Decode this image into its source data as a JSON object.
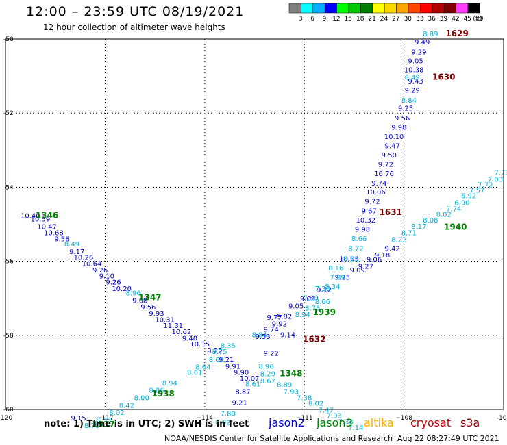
{
  "header": {
    "title": "12:00 – 23:59 UTC 08/19/2021",
    "subtitle": "12 hour collection of altimeter wave heights"
  },
  "colorbar": {
    "unit": "(ft)",
    "levels": [
      {
        "label": "3",
        "color": "#7f7f7f"
      },
      {
        "label": "6",
        "color": "#00ffff"
      },
      {
        "label": "9",
        "color": "#00b0ff"
      },
      {
        "label": "12",
        "color": "#0000ff"
      },
      {
        "label": "15",
        "color": "#00ff00"
      },
      {
        "label": "18",
        "color": "#00c800"
      },
      {
        "label": "21",
        "color": "#008000"
      },
      {
        "label": "24",
        "color": "#ffff00"
      },
      {
        "label": "27",
        "color": "#ffd700"
      },
      {
        "label": "30",
        "color": "#ffa500"
      },
      {
        "label": "33",
        "color": "#ff4500"
      },
      {
        "label": "36",
        "color": "#ff0000"
      },
      {
        "label": "39",
        "color": "#b00000"
      },
      {
        "label": "42",
        "color": "#800000"
      },
      {
        "label": "45",
        "color": "#ff40ff"
      },
      {
        "label": "70",
        "color": "#000000"
      }
    ]
  },
  "footer": {
    "note": "note:  1) Time is in UTC;  2) SWH is in feet",
    "credit": "NOAA/NESDIS Center for Satellite Applications and Research",
    "timestamp": "Aug 22 08:27:49 UTC 2021",
    "missions": [
      {
        "name": "jason2",
        "color": "#0000c8"
      },
      {
        "name": "jason3",
        "color": "#008000"
      },
      {
        "name": "altika",
        "color": "#ffa500"
      },
      {
        "name": "cryosat",
        "color": "#c00000"
      },
      {
        "name": "s3a",
        "color": "#800000"
      }
    ]
  },
  "chart_data": {
    "type": "scatter",
    "title": "12:00 – 23:59 UTC 08/19/2021",
    "subtitle": "12 hour collection of altimeter wave heights",
    "xlabel": "",
    "ylabel": "",
    "xlim": [
      -120,
      -105
    ],
    "ylim": [
      -60,
      -50
    ],
    "xticks": [
      {
        "v": -120,
        "label": "-120"
      },
      {
        "v": -117,
        "label": "−117"
      },
      {
        "v": -114,
        "label": "−114"
      },
      {
        "v": -111,
        "label": "−111"
      },
      {
        "v": -108,
        "label": "−108"
      },
      {
        "v": -105,
        "label": "-105"
      }
    ],
    "yticks": [
      {
        "v": -50,
        "label": "-50"
      },
      {
        "v": -52,
        "label": "-52"
      },
      {
        "v": -54,
        "label": "-54"
      },
      {
        "v": -56,
        "label": "-56"
      },
      {
        "v": -58,
        "label": "-58"
      },
      {
        "v": -60,
        "label": "-60"
      }
    ],
    "grid": true,
    "series": [
      {
        "color": "#0000c8",
        "points": [
          {
            "x": -119.25,
            "y": -54.83,
            "label": "10.40"
          },
          {
            "x": -118.95,
            "y": -54.93,
            "label": "10.59"
          },
          {
            "x": -118.75,
            "y": -55.13,
            "label": "10.47"
          },
          {
            "x": -118.55,
            "y": -55.3,
            "label": "10.68"
          },
          {
            "x": -118.3,
            "y": -55.46,
            "label": "9.58"
          },
          {
            "x": -117.85,
            "y": -55.8,
            "label": "9.17"
          },
          {
            "x": -117.65,
            "y": -55.96,
            "label": "10.26"
          },
          {
            "x": -117.4,
            "y": -56.13,
            "label": "10.64"
          },
          {
            "x": -117.15,
            "y": -56.3,
            "label": "9.26"
          },
          {
            "x": -116.95,
            "y": -56.46,
            "label": "9.10"
          },
          {
            "x": -116.75,
            "y": -56.63,
            "label": "9.26"
          },
          {
            "x": -116.5,
            "y": -56.8,
            "label": "10.20"
          },
          {
            "x": -115.95,
            "y": -57.13,
            "label": "9.08"
          },
          {
            "x": -115.7,
            "y": -57.3,
            "label": "9.56"
          },
          {
            "x": -115.45,
            "y": -57.47,
            "label": "9.93"
          },
          {
            "x": -115.2,
            "y": -57.64,
            "label": "10.31"
          },
          {
            "x": -114.95,
            "y": -57.8,
            "label": "11.31"
          },
          {
            "x": -114.7,
            "y": -57.97,
            "label": "10.62"
          },
          {
            "x": -114.45,
            "y": -58.14,
            "label": "9.40"
          },
          {
            "x": -114.15,
            "y": -58.3,
            "label": "10.15"
          },
          {
            "x": -113.7,
            "y": -58.48,
            "label": "9.22"
          },
          {
            "x": -113.35,
            "y": -58.72,
            "label": "9.21"
          },
          {
            "x": -113.15,
            "y": -58.9,
            "label": "9.91"
          },
          {
            "x": -112.9,
            "y": -59.07,
            "label": "9.90"
          },
          {
            "x": -112.65,
            "y": -59.22,
            "label": "10.07"
          },
          {
            "x": -112.85,
            "y": -59.58,
            "label": "8.87"
          },
          {
            "x": -112.95,
            "y": -59.88,
            "label": "9.21"
          },
          {
            "x": -107.45,
            "y": -50.15,
            "label": "9.49"
          },
          {
            "x": -107.55,
            "y": -50.42,
            "label": "9.29"
          },
          {
            "x": -107.65,
            "y": -50.66,
            "label": "9.05"
          },
          {
            "x": -107.7,
            "y": -50.9,
            "label": "10.38"
          },
          {
            "x": -107.65,
            "y": -51.2,
            "label": "9.43"
          },
          {
            "x": -107.75,
            "y": -51.45,
            "label": "9.29"
          },
          {
            "x": -107.95,
            "y": -51.93,
            "label": "9.25"
          },
          {
            "x": -108.05,
            "y": -52.2,
            "label": "9.56"
          },
          {
            "x": -108.15,
            "y": -52.45,
            "label": "9.98"
          },
          {
            "x": -108.3,
            "y": -52.7,
            "label": "10.10"
          },
          {
            "x": -108.35,
            "y": -52.95,
            "label": "9.47"
          },
          {
            "x": -108.45,
            "y": -53.2,
            "label": "9.50"
          },
          {
            "x": -108.55,
            "y": -53.45,
            "label": "9.72"
          },
          {
            "x": -108.6,
            "y": -53.7,
            "label": "10.76"
          },
          {
            "x": -108.75,
            "y": -53.96,
            "label": "9.74"
          },
          {
            "x": -108.85,
            "y": -54.2,
            "label": "10.06"
          },
          {
            "x": -108.95,
            "y": -54.45,
            "label": "9.72"
          },
          {
            "x": -109.05,
            "y": -54.7,
            "label": "9.67"
          },
          {
            "x": -109.15,
            "y": -54.95,
            "label": "10.32"
          },
          {
            "x": -109.25,
            "y": -55.2,
            "label": "9.98"
          },
          {
            "x": -109.65,
            "y": -56.0,
            "label": "10.05"
          },
          {
            "x": -112.25,
            "y": -58.1,
            "label": "9.53"
          },
          {
            "x": -112.0,
            "y": -57.9,
            "label": "9.74"
          },
          {
            "x": -111.75,
            "y": -57.75,
            "label": "9.92"
          },
          {
            "x": -111.9,
            "y": -57.58,
            "label": "9.77"
          },
          {
            "x": -111.6,
            "y": -57.55,
            "label": "9.82"
          },
          {
            "x": -111.25,
            "y": -57.27,
            "label": "9.05"
          },
          {
            "x": -110.9,
            "y": -57.08,
            "label": "9.09"
          },
          {
            "x": -110.4,
            "y": -56.83,
            "label": "9.12"
          },
          {
            "x": -109.85,
            "y": -56.5,
            "label": "9.25"
          },
          {
            "x": -109.4,
            "y": -56.3,
            "label": "9.09"
          },
          {
            "x": -109.15,
            "y": -56.2,
            "label": "9.27"
          },
          {
            "x": -108.9,
            "y": -56.02,
            "label": "9.06"
          },
          {
            "x": -108.65,
            "y": -55.9,
            "label": "9.18"
          },
          {
            "x": -108.35,
            "y": -55.72,
            "label": "9.42"
          },
          {
            "x": -111.5,
            "y": -58.05,
            "label": "9.14"
          },
          {
            "x": -112.0,
            "y": -58.55,
            "label": "9.22"
          }
        ]
      },
      {
        "color": "#00b0d8",
        "points": [
          {
            "x": -107.2,
            "y": -49.93,
            "label": "8.89"
          },
          {
            "x": -107.75,
            "y": -51.1,
            "label": "8.49"
          },
          {
            "x": -107.85,
            "y": -51.72,
            "label": "8.84"
          },
          {
            "x": -109.35,
            "y": -55.45,
            "label": "8.66"
          },
          {
            "x": -109.45,
            "y": -55.72,
            "label": "8.72"
          },
          {
            "x": -109.6,
            "y": -56.0,
            "label": "8.53"
          },
          {
            "x": -110.05,
            "y": -56.25,
            "label": "8.16"
          },
          {
            "x": -110.0,
            "y": -56.5,
            "label": "7.89"
          },
          {
            "x": -110.45,
            "y": -56.8,
            "label": "7.36"
          },
          {
            "x": -110.8,
            "y": -57.05,
            "label": "7.99"
          },
          {
            "x": -110.75,
            "y": -57.33,
            "label": "8.75"
          },
          {
            "x": -110.45,
            "y": -57.15,
            "label": "8.66"
          },
          {
            "x": -111.05,
            "y": -57.5,
            "label": "8.94"
          },
          {
            "x": -118.0,
            "y": -55.6,
            "label": "8.49"
          },
          {
            "x": -116.15,
            "y": -56.92,
            "label": "8.96"
          },
          {
            "x": -113.3,
            "y": -58.35,
            "label": "8.35"
          },
          {
            "x": -113.55,
            "y": -58.5,
            "label": "8.75"
          },
          {
            "x": -112.35,
            "y": -58.05,
            "label": "8.84"
          },
          {
            "x": -113.65,
            "y": -58.72,
            "label": "8.60"
          },
          {
            "x": -114.05,
            "y": -58.92,
            "label": "8.64"
          },
          {
            "x": -114.3,
            "y": -59.07,
            "label": "8.61"
          },
          {
            "x": -112.15,
            "y": -58.9,
            "label": "8.96"
          },
          {
            "x": -112.1,
            "y": -59.1,
            "label": "8.29"
          },
          {
            "x": -112.1,
            "y": -59.3,
            "label": "8.67"
          },
          {
            "x": -112.55,
            "y": -59.38,
            "label": "8.61"
          },
          {
            "x": -111.6,
            "y": -59.4,
            "label": "8.89"
          },
          {
            "x": -111.4,
            "y": -59.58,
            "label": "7.93"
          },
          {
            "x": -111.0,
            "y": -59.75,
            "label": "7.38"
          },
          {
            "x": -110.65,
            "y": -59.9,
            "label": "8.02"
          },
          {
            "x": -110.35,
            "y": -60.08,
            "label": "7.47"
          },
          {
            "x": -110.1,
            "y": -60.23,
            "label": "7.93"
          },
          {
            "x": -109.75,
            "y": -60.4,
            "label": "7.33"
          },
          {
            "x": -109.45,
            "y": -60.55,
            "label": "7.14"
          },
          {
            "x": -113.3,
            "y": -60.18,
            "label": "7.80"
          },
          {
            "x": -113.45,
            "y": -60.42,
            "label": "8.02"
          },
          {
            "x": -115.05,
            "y": -59.35,
            "label": "8.94"
          },
          {
            "x": -115.45,
            "y": -59.55,
            "label": "8.86"
          },
          {
            "x": -115.9,
            "y": -59.75,
            "label": "8.00"
          },
          {
            "x": -116.35,
            "y": -59.95,
            "label": "8.42"
          },
          {
            "x": -116.65,
            "y": -60.15,
            "label": "8.02"
          },
          {
            "x": -117.05,
            "y": -60.35,
            "label": "8.33"
          },
          {
            "x": -117.4,
            "y": -60.5,
            "label": "8.70"
          },
          {
            "x": -108.15,
            "y": -55.48,
            "label": "8.22"
          },
          {
            "x": -107.85,
            "y": -55.3,
            "label": "8.71"
          },
          {
            "x": -107.55,
            "y": -55.12,
            "label": "8.17"
          },
          {
            "x": -107.2,
            "y": -54.95,
            "label": "8.08"
          },
          {
            "x": -106.8,
            "y": -54.8,
            "label": "8.02"
          },
          {
            "x": -106.5,
            "y": -54.65,
            "label": "7.74"
          },
          {
            "x": -106.25,
            "y": -54.48,
            "label": "6.90"
          },
          {
            "x": -106.05,
            "y": -54.3,
            "label": "6.92"
          },
          {
            "x": -105.8,
            "y": -54.15,
            "label": "7.57"
          },
          {
            "x": -105.55,
            "y": -54.0,
            "label": "7.72"
          },
          {
            "x": -105.25,
            "y": -53.85,
            "label": "7.03"
          },
          {
            "x": -105.05,
            "y": -53.67,
            "label": "7.73"
          },
          {
            "x": -110.15,
            "y": -56.75,
            "label": "8.34"
          }
        ]
      },
      {
        "color": "#000080",
        "points": [
          {
            "x": -117.8,
            "y": -60.3,
            "label": "9.15"
          }
        ]
      }
    ],
    "time_labels": [
      {
        "x": -118.75,
        "y": -54.83,
        "label": "1346",
        "color": "#008000"
      },
      {
        "x": -115.65,
        "y": -57.05,
        "label": "1347",
        "color": "#008000"
      },
      {
        "x": -111.4,
        "y": -59.1,
        "label": "1348",
        "color": "#008000"
      },
      {
        "x": -115.25,
        "y": -59.65,
        "label": "1938",
        "color": "#008000"
      },
      {
        "x": -117.05,
        "y": -60.48,
        "label": "1937",
        "color": "#008000"
      },
      {
        "x": -110.4,
        "y": -57.45,
        "label": "1939",
        "color": "#008000"
      },
      {
        "x": -106.45,
        "y": -55.15,
        "label": "1940",
        "color": "#008000"
      },
      {
        "x": -106.4,
        "y": -49.93,
        "label": "1629",
        "color": "#800000"
      },
      {
        "x": -106.8,
        "y": -51.1,
        "label": "1630",
        "color": "#800000"
      },
      {
        "x": -108.4,
        "y": -54.75,
        "label": "1631",
        "color": "#800000"
      },
      {
        "x": -110.7,
        "y": -58.18,
        "label": "1632",
        "color": "#800000"
      }
    ]
  }
}
